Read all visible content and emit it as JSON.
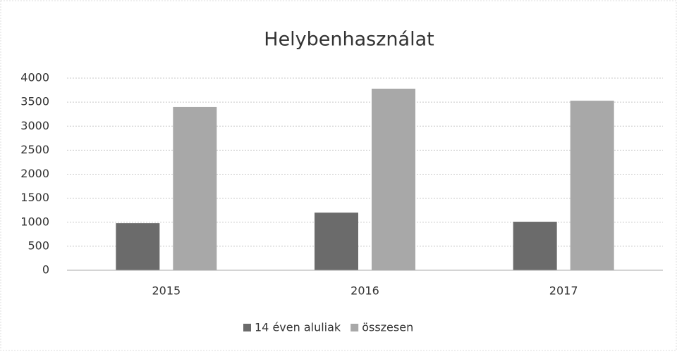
{
  "chart_data": {
    "type": "bar",
    "title": "Helybenhasználat",
    "categories": [
      "2015",
      "2016",
      "2017"
    ],
    "series": [
      {
        "name": "14 éven aluliak",
        "color": "#6b6b6b",
        "values": [
          980,
          1200,
          1010
        ]
      },
      {
        "name": "összesen",
        "color": "#a8a8a8",
        "values": [
          3400,
          3780,
          3530
        ]
      }
    ],
    "ylim": [
      0,
      4000
    ],
    "yticks": [
      0,
      500,
      1000,
      1500,
      2000,
      2500,
      3000,
      3500,
      4000
    ],
    "grid": true,
    "legend": "bottom"
  }
}
